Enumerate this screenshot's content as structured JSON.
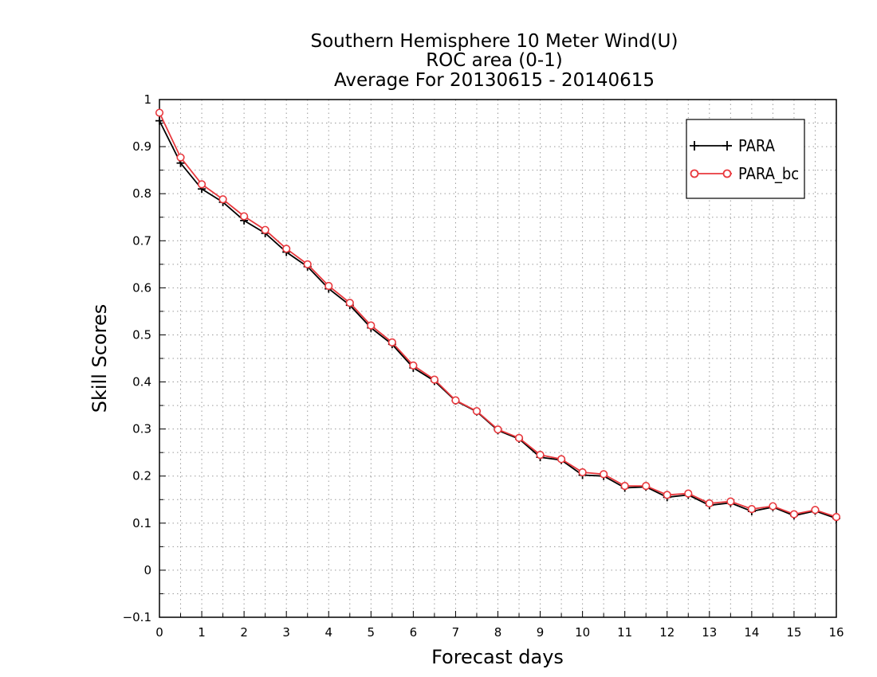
{
  "chart_data": {
    "type": "line",
    "title": [
      "Southern Hemisphere 10 Meter Wind(U)",
      "ROC area (0-1)",
      "Average For 20130615 - 20140615"
    ],
    "xlabel": "Forecast days",
    "ylabel": "Skill Scores",
    "xlim": [
      0,
      16
    ],
    "ylim": [
      -0.1,
      1
    ],
    "x_ticks": [
      "0",
      "1",
      "2",
      "3",
      "4",
      "5",
      "6",
      "7",
      "8",
      "9",
      "10",
      "11",
      "12",
      "13",
      "14",
      "15",
      "16"
    ],
    "y_ticks": [
      "-0.1",
      "0",
      "0.1",
      "0.2",
      "0.3",
      "0.4",
      "0.5",
      "0.6",
      "0.7",
      "0.8",
      "0.9",
      "1"
    ],
    "grid": true,
    "legend_position": "top-right",
    "x": [
      0,
      0.5,
      1,
      1.5,
      2,
      2.5,
      3,
      3.5,
      4,
      4.5,
      5,
      5.5,
      6,
      6.5,
      7,
      7.5,
      8,
      8.5,
      9,
      9.5,
      10,
      10.5,
      11,
      11.5,
      12,
      12.5,
      13,
      13.5,
      14,
      14.5,
      15,
      15.5,
      16
    ],
    "series": [
      {
        "name": "PARA",
        "color": "#000000",
        "marker": "plus",
        "values": [
          0.955,
          0.865,
          0.81,
          0.782,
          0.743,
          0.716,
          0.676,
          0.645,
          0.598,
          0.563,
          0.515,
          0.48,
          0.43,
          0.402,
          0.36,
          0.337,
          0.297,
          0.279,
          0.24,
          0.234,
          0.202,
          0.2,
          0.175,
          0.177,
          0.155,
          0.16,
          0.138,
          0.143,
          0.125,
          0.134,
          0.116,
          0.126,
          0.11
        ]
      },
      {
        "name": "PARA_bc",
        "color": "#e8383d",
        "marker": "circle",
        "values": [
          0.972,
          0.877,
          0.82,
          0.788,
          0.752,
          0.723,
          0.683,
          0.65,
          0.604,
          0.568,
          0.52,
          0.484,
          0.435,
          0.405,
          0.361,
          0.338,
          0.299,
          0.281,
          0.245,
          0.236,
          0.208,
          0.204,
          0.179,
          0.179,
          0.16,
          0.163,
          0.142,
          0.146,
          0.13,
          0.136,
          0.119,
          0.128,
          0.113
        ]
      }
    ]
  }
}
